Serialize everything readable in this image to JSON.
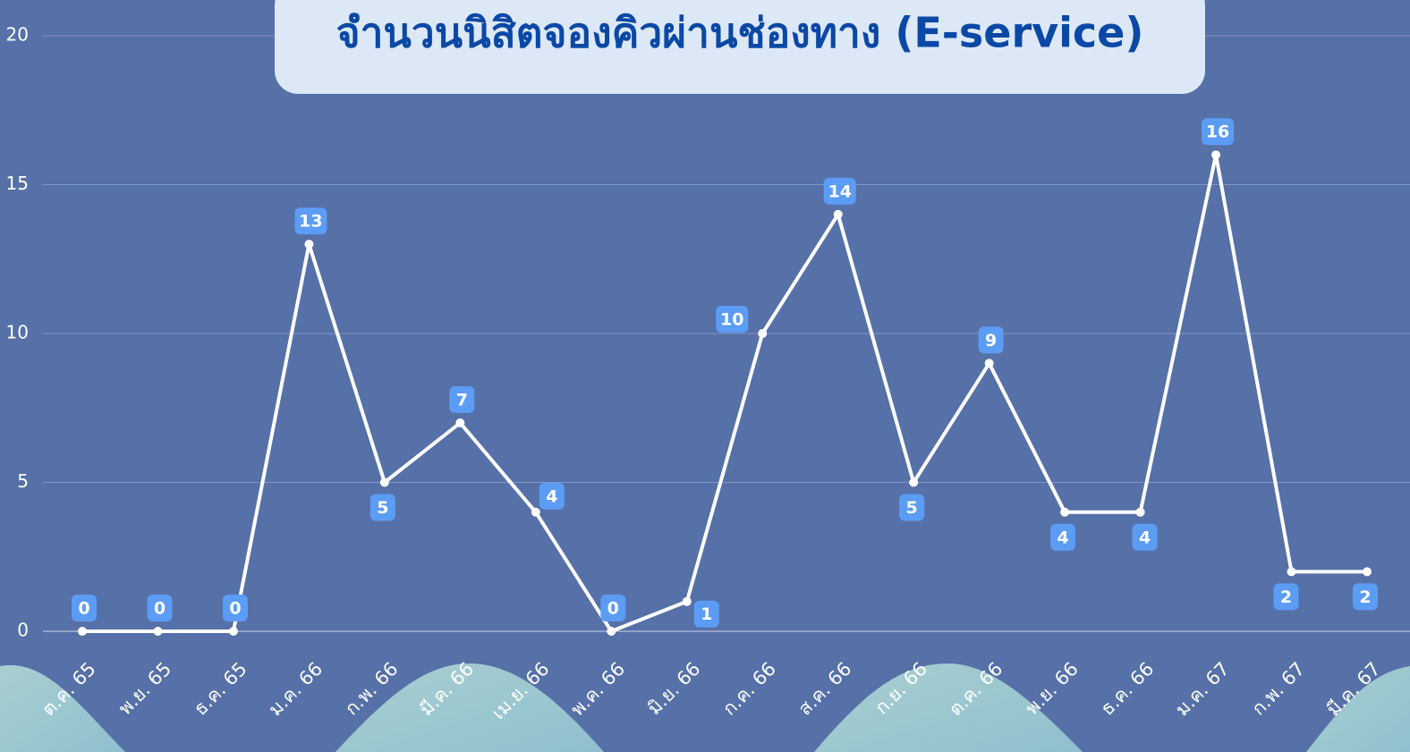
{
  "chart_data": {
    "type": "line",
    "title": "จำนวนนิสิตจองคิวผ่านช่องทาง (E-service)",
    "categories": [
      "ต.ค. 65",
      "พ.ย. 65",
      "ธ.ค. 65",
      "ม.ค. 66",
      "ก.พ. 66",
      "มี.ค. 66",
      "เม.ย. 66",
      "พ.ค. 66",
      "มิ.ย. 66",
      "ก.ค. 66",
      "ส.ค. 66",
      "ก.ย. 66",
      "ต.ค. 66",
      "พ.ย. 66",
      "ธ.ค. 66",
      "ม.ค. 67",
      "ก.พ. 67",
      "มี.ค. 67"
    ],
    "values": [
      0,
      0,
      0,
      13,
      5,
      7,
      4,
      0,
      1,
      10,
      14,
      5,
      9,
      4,
      4,
      16,
      2,
      2
    ],
    "color": "#ffffff",
    "ylim": [
      0,
      20
    ],
    "yticks": [
      0,
      5,
      10,
      15,
      20
    ],
    "grid": true
  }
}
